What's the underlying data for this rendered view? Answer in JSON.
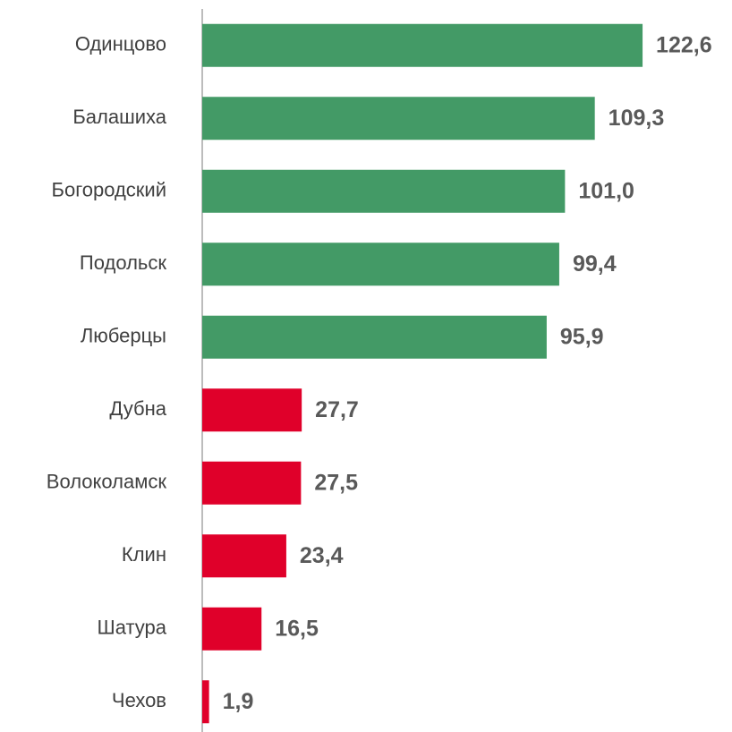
{
  "chart_data": {
    "type": "barh",
    "categories": [
      "Одинцово",
      "Балашиха",
      "Богородский",
      "Подольск",
      "Люберцы",
      "Дубна",
      "Волоколамск",
      "Клин",
      "Шатура",
      "Чехов"
    ],
    "values": [
      122.6,
      109.3,
      101.0,
      99.4,
      95.9,
      27.7,
      27.5,
      23.4,
      16.5,
      1.9
    ],
    "value_labels": [
      "122,6",
      "109,3",
      "101,0",
      "99,4",
      "95,9",
      "27,7",
      "27,5",
      "23,4",
      "16,5",
      "1,9"
    ],
    "colors": [
      "#439a66",
      "#439a66",
      "#439a66",
      "#439a66",
      "#439a66",
      "#e0002a",
      "#e0002a",
      "#e0002a",
      "#e0002a",
      "#e0002a"
    ],
    "xlim": [
      0,
      147.5
    ]
  }
}
